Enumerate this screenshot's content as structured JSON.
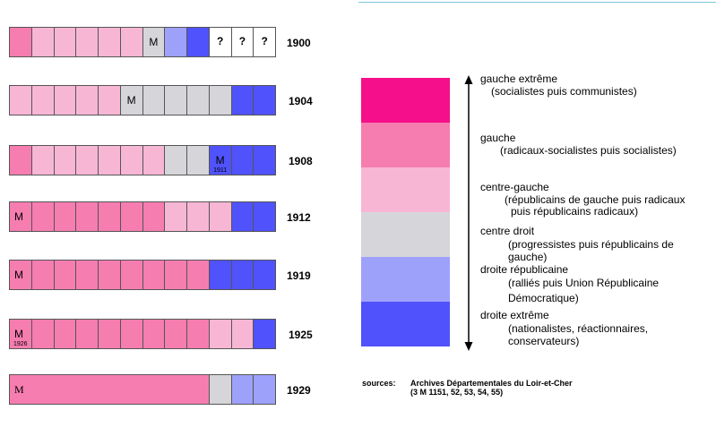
{
  "colors": {
    "gauche_extreme": "#f50f8a",
    "gauche": "#f67db0",
    "centre_gauche": "#f8b6d5",
    "centre_droit": "#d6d6da",
    "droite_republicaine": "#9ea1fa",
    "droite_extreme": "#5052fb",
    "unknown": "#ffffff"
  },
  "rows": [
    {
      "year": "1900",
      "cells": [
        {
          "c": "gauche"
        },
        {
          "c": "centre_gauche"
        },
        {
          "c": "centre_gauche"
        },
        {
          "c": "centre_gauche"
        },
        {
          "c": "centre_gauche"
        },
        {
          "c": "centre_gauche"
        },
        {
          "c": "centre_droit",
          "mark": "M"
        },
        {
          "c": "droite_republicaine"
        },
        {
          "c": "droite_extreme"
        },
        {
          "c": "unknown",
          "q": "?"
        },
        {
          "c": "unknown",
          "q": "?"
        },
        {
          "c": "unknown",
          "q": "?"
        }
      ]
    },
    {
      "year": "1904",
      "cells": [
        {
          "c": "centre_gauche"
        },
        {
          "c": "centre_gauche"
        },
        {
          "c": "centre_gauche"
        },
        {
          "c": "centre_gauche"
        },
        {
          "c": "centre_gauche"
        },
        {
          "c": "centre_droit",
          "mark": "M"
        },
        {
          "c": "centre_droit"
        },
        {
          "c": "centre_droit"
        },
        {
          "c": "centre_droit"
        },
        {
          "c": "centre_droit"
        },
        {
          "c": "droite_extreme"
        },
        {
          "c": "droite_extreme"
        }
      ]
    },
    {
      "year": "1908",
      "cells": [
        {
          "c": "gauche"
        },
        {
          "c": "centre_gauche"
        },
        {
          "c": "centre_gauche"
        },
        {
          "c": "centre_gauche"
        },
        {
          "c": "centre_gauche"
        },
        {
          "c": "centre_gauche"
        },
        {
          "c": "centre_gauche"
        },
        {
          "c": "centre_droit"
        },
        {
          "c": "centre_droit"
        },
        {
          "c": "droite_extreme",
          "mark": "M",
          "sub": "1911"
        },
        {
          "c": "droite_extreme"
        },
        {
          "c": "droite_extreme"
        }
      ]
    },
    {
      "year": "1912",
      "cells": [
        {
          "c": "gauche",
          "mark": "M",
          "left": true
        },
        {
          "c": "gauche"
        },
        {
          "c": "gauche"
        },
        {
          "c": "gauche"
        },
        {
          "c": "gauche"
        },
        {
          "c": "gauche"
        },
        {
          "c": "gauche"
        },
        {
          "c": "centre_gauche"
        },
        {
          "c": "centre_gauche"
        },
        {
          "c": "centre_gauche"
        },
        {
          "c": "droite_extreme"
        },
        {
          "c": "droite_extreme"
        }
      ]
    },
    {
      "year": "1919",
      "cells": [
        {
          "c": "gauche",
          "mark": "M",
          "left": true
        },
        {
          "c": "gauche"
        },
        {
          "c": "gauche"
        },
        {
          "c": "gauche"
        },
        {
          "c": "gauche"
        },
        {
          "c": "gauche"
        },
        {
          "c": "gauche"
        },
        {
          "c": "gauche"
        },
        {
          "c": "gauche"
        },
        {
          "c": "droite_extreme"
        },
        {
          "c": "droite_extreme"
        },
        {
          "c": "droite_extreme"
        }
      ]
    },
    {
      "year": "1925",
      "cells": [
        {
          "c": "gauche",
          "mark": "M",
          "sub": "1926",
          "left": true
        },
        {
          "c": "gauche"
        },
        {
          "c": "gauche"
        },
        {
          "c": "gauche"
        },
        {
          "c": "gauche"
        },
        {
          "c": "gauche"
        },
        {
          "c": "gauche"
        },
        {
          "c": "gauche"
        },
        {
          "c": "gauche"
        },
        {
          "c": "centre_gauche"
        },
        {
          "c": "centre_gauche"
        },
        {
          "c": "droite_extreme"
        }
      ]
    },
    {
      "year": "1929",
      "cells": [
        {
          "c": "gauche",
          "mark": "M",
          "left": true,
          "span": 9
        },
        {
          "c": "centre_droit"
        },
        {
          "c": "droite_republicaine"
        },
        {
          "c": "droite_republicaine"
        }
      ]
    }
  ],
  "legend": [
    {
      "key": "gauche_extreme",
      "label": "gauche extrême",
      "desc": [
        "(socialistes puis communistes)"
      ]
    },
    {
      "key": "gauche",
      "label": "gauche",
      "desc": [
        "(radicaux-socialistes puis socialistes)"
      ]
    },
    {
      "key": "centre_gauche",
      "label": "centre-gauche",
      "desc": [
        "(républicains de gauche puis radicaux",
        "puis républicains radicaux)"
      ]
    },
    {
      "key": "centre_droit",
      "label": "centre droit",
      "desc": [
        "(progressistes puis républicains de",
        "gauche)"
      ]
    },
    {
      "key": "droite_republicaine",
      "label": "droite républicaine",
      "desc": [
        "(ralliés puis Union Républicaine",
        "Démocratique)"
      ]
    },
    {
      "key": "droite_extreme",
      "label": "droite extrême",
      "desc": [
        "(nationalistes, réactionnaires,",
        "conservateurs)"
      ]
    }
  ],
  "sources": {
    "label": "sources:",
    "line1": "Archives Départementales du Loir-et-Cher",
    "line2": "(3 M 1151, 52, 53, 54, 55)"
  }
}
